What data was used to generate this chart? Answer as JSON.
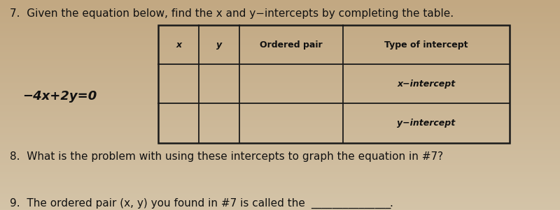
{
  "bg_top": "#c2a882",
  "bg_bottom": "#d4c4a8",
  "title_text": "7.  Given the equation below, find the x and y−intercepts by completing the table.",
  "equation": "−4x+2y=0",
  "q8_text": "8.  What is the problem with using these intercepts to graph the equation in #7?",
  "q9_text": "9.  The ordered pair (x, y) you found in #7 is called the",
  "underline_text": "_______________",
  "table_headers": [
    "x",
    "y",
    "Ordered pair",
    "Type of intercept"
  ],
  "table_row1_type": "x−intercept",
  "table_row2_type": "y−intercept",
  "text_color": "#111111",
  "table_line_color": "#1a1a1a",
  "font_size_title": 11,
  "font_size_eq": 13,
  "font_size_table": 9,
  "font_size_q": 11
}
